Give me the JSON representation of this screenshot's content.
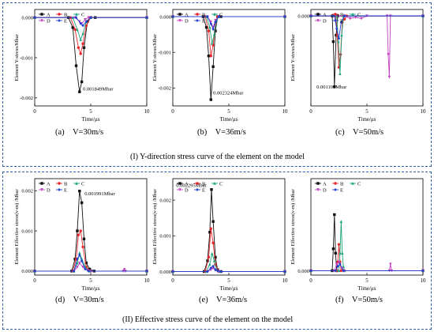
{
  "groups": [
    {
      "caption": "(I)  Y-direction stress curve of the element on the model"
    },
    {
      "caption": "(II)   Effective stress curve of the element on the model"
    }
  ],
  "colors": {
    "A": "#111111",
    "B": "#e8262b",
    "C": "#1aa37a",
    "D": "#c040c0",
    "E": "#1f3fd0",
    "box": "#2f5fa8"
  },
  "chart_data": [
    {
      "id": "a",
      "type": "line",
      "caption_label": "(a)",
      "caption_value": "V=30m/s",
      "ylabel": "Element  Y-stress/Mbar",
      "xlabel": "Time/μs",
      "xlim": [
        0,
        10
      ],
      "ylim": [
        -0.0022,
        0.0002
      ],
      "x_ticks": [
        "0",
        "5",
        "10"
      ],
      "x_tick_values": [
        0,
        5,
        10
      ],
      "y_ticks": [
        "0.000",
        "-0.001",
        "-0.002"
      ],
      "y_tick_values": [
        0,
        -0.001,
        -0.002
      ],
      "annotation": {
        "text": "0.001849Mbar",
        "x": 4.3,
        "y": -0.00182
      },
      "legend": [
        "A",
        "B",
        "C",
        "D",
        "E"
      ],
      "series": [
        {
          "name": "A",
          "x": [
            0,
            3.0,
            3.4,
            3.7,
            4.0,
            4.2,
            4.4,
            4.7,
            5.0,
            5.4,
            10
          ],
          "y": [
            0,
            0,
            -0.00025,
            -0.0012,
            -0.001849,
            -0.0016,
            -0.00075,
            -0.0001,
            0,
            0,
            0
          ]
        },
        {
          "name": "B",
          "x": [
            0,
            3.2,
            3.6,
            3.9,
            4.1,
            4.3,
            4.6,
            5.0,
            10
          ],
          "y": [
            0,
            0,
            -0.0003,
            -0.00075,
            -0.0009,
            -0.00065,
            -0.0002,
            0,
            0
          ]
        },
        {
          "name": "C",
          "x": [
            0,
            3.4,
            3.8,
            4.1,
            4.3,
            4.6,
            5.0,
            10
          ],
          "y": [
            0,
            0,
            -0.0003,
            -0.00055,
            -0.0004,
            -0.0001,
            0,
            0
          ]
        },
        {
          "name": "D",
          "x": [
            0,
            3.6,
            4.0,
            4.2,
            4.5,
            4.8,
            10
          ],
          "y": [
            0,
            0,
            -0.0001,
            -0.00015,
            -5e-05,
            0,
            0
          ]
        },
        {
          "name": "E",
          "x": [
            0,
            3.7,
            4.1,
            4.3,
            4.6,
            5.0,
            10
          ],
          "y": [
            0,
            0,
            -0.00015,
            -0.0002,
            -0.0001,
            0,
            0
          ]
        }
      ]
    },
    {
      "id": "b",
      "type": "line",
      "caption_label": "(b)",
      "caption_value": "V=36m/s",
      "ylabel": "Element  Y-stress/Mbar",
      "xlabel": "Time/μs",
      "xlim": [
        0,
        10
      ],
      "ylim": [
        -0.0025,
        0.0002
      ],
      "x_ticks": [
        "0",
        "5",
        "10"
      ],
      "x_tick_values": [
        0,
        5,
        10
      ],
      "y_ticks": [
        "0.000",
        "-0.001",
        "-0.002"
      ],
      "y_tick_values": [
        0,
        -0.001,
        -0.002
      ],
      "annotation": {
        "text": "0.002324Mbar",
        "x": 3.6,
        "y": -0.00218
      },
      "legend": [
        "A",
        "B",
        "C",
        "D",
        "E"
      ],
      "series": [
        {
          "name": "A",
          "x": [
            0,
            2.7,
            3.0,
            3.2,
            3.4,
            3.6,
            3.8,
            4.0,
            4.3,
            10
          ],
          "y": [
            0,
            0,
            -0.0003,
            -0.0011,
            -0.002324,
            -0.0014,
            -0.0004,
            0,
            0,
            0
          ]
        },
        {
          "name": "B",
          "x": [
            0,
            2.9,
            3.2,
            3.4,
            3.6,
            3.8,
            4.0,
            10
          ],
          "y": [
            0,
            0,
            -0.0004,
            -0.0011,
            -0.0008,
            -0.0002,
            0,
            0
          ]
        },
        {
          "name": "C",
          "x": [
            0,
            3.0,
            3.3,
            3.5,
            3.7,
            3.9,
            4.1,
            10
          ],
          "y": [
            0,
            0,
            -0.0003,
            -0.00075,
            -0.0005,
            -0.0001,
            0,
            0
          ]
        },
        {
          "name": "D",
          "x": [
            0,
            3.1,
            3.4,
            3.6,
            3.8,
            4.1,
            10
          ],
          "y": [
            0,
            0,
            -0.00015,
            -0.0003,
            -0.0001,
            0,
            0
          ]
        },
        {
          "name": "E",
          "x": [
            0,
            3.1,
            3.4,
            3.6,
            3.8,
            4.1,
            10
          ],
          "y": [
            0,
            0,
            -0.0002,
            -0.00035,
            -0.00015,
            0,
            0
          ]
        }
      ]
    },
    {
      "id": "c",
      "type": "line",
      "caption_label": "(c)",
      "caption_value": "V=50m/s",
      "ylabel": "Element  Y-stress/Mbar",
      "xlabel": "Time/μs",
      "xlim": [
        0,
        10
      ],
      "ylim": [
        -0.0014,
        0.0001
      ],
      "x_ticks": [
        "0",
        "5",
        "10"
      ],
      "x_tick_values": [
        0,
        5,
        10
      ],
      "y_ticks": [
        "0.000"
      ],
      "y_tick_values": [
        0
      ],
      "annotation": {
        "text": "0.001101Mbar",
        "x": 0.5,
        "y": -0.00113
      },
      "legend": [
        "A",
        "B",
        "C",
        "D",
        "E"
      ],
      "series": [
        {
          "name": "A",
          "x": [
            0,
            1.9,
            2.0,
            2.1,
            2.25,
            2.4,
            10
          ],
          "y": [
            0,
            0,
            -0.0004,
            -0.001101,
            -0.0003,
            0,
            0
          ]
        },
        {
          "name": "B",
          "x": [
            0,
            2.2,
            2.35,
            2.5,
            2.65,
            2.8,
            3.0,
            3.2,
            10
          ],
          "y": [
            0,
            0,
            -0.0003,
            -0.0008,
            -0.0006,
            -0.0001,
            -5e-05,
            0,
            0
          ]
        },
        {
          "name": "C",
          "x": [
            0,
            2.3,
            2.45,
            2.6,
            2.75,
            2.9,
            10
          ],
          "y": [
            0,
            0,
            -0.0004,
            -0.0009,
            -0.0003,
            0,
            0
          ]
        },
        {
          "name": "D",
          "x": [
            0,
            3.0,
            3.5,
            4.0,
            4.5,
            5.0,
            6.8,
            6.9,
            7.0,
            7.1,
            10
          ],
          "y": [
            0,
            0,
            -4e-05,
            -2e-05,
            -4e-05,
            0,
            0,
            -0.0006,
            -0.00095,
            0,
            0
          ]
        },
        {
          "name": "E",
          "x": [
            0,
            2.1,
            2.3,
            2.5,
            2.7,
            3.0,
            10
          ],
          "y": [
            0,
            0,
            -0.0002,
            -0.00035,
            -0.0001,
            0,
            0
          ]
        }
      ]
    },
    {
      "id": "d",
      "type": "line",
      "caption_label": "(d)",
      "caption_value": "V=30m/s",
      "ylabel": "Element  Effective stress(v-m) /Mbar",
      "xlabel": "Time/μs",
      "xlim": [
        0,
        10
      ],
      "ylim": [
        -0.0001,
        0.0023
      ],
      "x_ticks": [
        "0",
        "5",
        "10"
      ],
      "x_tick_values": [
        0,
        5,
        10
      ],
      "y_ticks": [
        "0.000",
        "0.001",
        "0.002"
      ],
      "y_tick_values": [
        0,
        0.001,
        0.002
      ],
      "annotation": {
        "text": "0.001991Mbar",
        "x": 4.45,
        "y": 0.00189
      },
      "legend": [
        "A",
        "B",
        "C",
        "D",
        "E"
      ],
      "series": [
        {
          "name": "A",
          "x": [
            0,
            3.3,
            3.6,
            3.8,
            4.0,
            4.2,
            4.4,
            4.6,
            4.9,
            5.3,
            10
          ],
          "y": [
            0,
            0,
            0.0003,
            0.001,
            0.001991,
            0.0017,
            0.0008,
            0.0002,
            5e-05,
            0,
            0
          ]
        },
        {
          "name": "B",
          "x": [
            0,
            3.4,
            3.7,
            3.9,
            4.1,
            4.3,
            4.6,
            5.0,
            10
          ],
          "y": [
            0,
            0,
            0.0003,
            0.0009,
            0.001,
            0.0006,
            0.0001,
            0,
            0
          ]
        },
        {
          "name": "C",
          "x": [
            0,
            3.5,
            3.8,
            4.0,
            4.2,
            4.5,
            4.9,
            10
          ],
          "y": [
            0,
            0,
            0.0002,
            0.00045,
            0.0003,
            0.0001,
            0,
            0
          ]
        },
        {
          "name": "D",
          "x": [
            0,
            3.5,
            3.8,
            4.0,
            4.3,
            4.7,
            5.0,
            7.9,
            8.0,
            8.1,
            10
          ],
          "y": [
            0,
            0,
            0.0001,
            0.0002,
            0.0001,
            2e-05,
            0,
            0,
            4e-05,
            0,
            0
          ]
        },
        {
          "name": "E",
          "x": [
            0,
            3.5,
            3.8,
            4.0,
            4.2,
            4.5,
            4.8,
            10
          ],
          "y": [
            0,
            0,
            0.0003,
            0.0004,
            0.00025,
            5e-05,
            0,
            0
          ]
        }
      ]
    },
    {
      "id": "e",
      "type": "line",
      "caption_label": "(e)",
      "caption_value": "V=36m/s",
      "ylabel": "Element  Effective stress(v-m) /Mbar",
      "xlabel": "Time/μs",
      "xlim": [
        0,
        10
      ],
      "ylim": [
        -0.0001,
        0.0026
      ],
      "x_ticks": [
        "0",
        "5",
        "10"
      ],
      "x_tick_values": [
        0,
        5,
        10
      ],
      "y_ticks": [
        "0.000",
        "0.001",
        "0.002"
      ],
      "y_tick_values": [
        0,
        0.001,
        0.002
      ],
      "annotation": {
        "text": "0.002295Mbar",
        "x": 0.3,
        "y": 0.00237
      },
      "legend": [
        "A",
        "B",
        "C",
        "D",
        "E"
      ],
      "series": [
        {
          "name": "A",
          "x": [
            0,
            2.8,
            3.1,
            3.3,
            3.45,
            3.6,
            3.8,
            4.0,
            4.3,
            10
          ],
          "y": [
            0,
            0,
            0.0003,
            0.0011,
            0.002295,
            0.0014,
            0.0004,
            5e-05,
            0,
            0
          ]
        },
        {
          "name": "B",
          "x": [
            0,
            2.9,
            3.2,
            3.4,
            3.6,
            3.8,
            4.1,
            10
          ],
          "y": [
            0,
            0,
            0.0004,
            0.0012,
            0.0008,
            0.0002,
            0,
            0
          ]
        },
        {
          "name": "C",
          "x": [
            0,
            3.0,
            3.3,
            3.5,
            3.7,
            3.9,
            4.2,
            10
          ],
          "y": [
            0,
            0,
            0.0002,
            0.0005,
            0.0003,
            5e-05,
            0,
            0
          ]
        },
        {
          "name": "D",
          "x": [
            0,
            3.1,
            3.4,
            3.6,
            3.8,
            4.1,
            10
          ],
          "y": [
            0,
            0,
            5e-05,
            0.0001,
            4e-05,
            0,
            0
          ]
        },
        {
          "name": "E",
          "x": [
            0,
            3.1,
            3.4,
            3.6,
            3.8,
            4.0,
            4.3,
            10
          ],
          "y": [
            0,
            0,
            0.0001,
            0.00015,
            5e-05,
            2e-05,
            0,
            0
          ]
        }
      ]
    },
    {
      "id": "f",
      "type": "line",
      "caption_label": "(f)",
      "caption_value": "V=50m/s",
      "ylabel": "Element  Effective stress(v-m) /Mbar",
      "xlabel": "Time/μs",
      "xlim": [
        0,
        10
      ],
      "ylim": [
        -0.0001,
        0.0021
      ],
      "x_ticks": [
        "0",
        "5",
        "10"
      ],
      "x_tick_values": [
        0,
        5,
        10
      ],
      "y_ticks": [
        "0.000"
      ],
      "y_tick_values": [
        0
      ],
      "annotation": null,
      "legend": [
        "A",
        "B",
        "C",
        "D",
        "E"
      ],
      "series": [
        {
          "name": "A",
          "x": [
            0,
            1.9,
            2.0,
            2.1,
            2.2,
            2.3,
            10
          ],
          "y": [
            0,
            0,
            0.0005,
            0.00128,
            0.0004,
            0,
            0
          ]
        },
        {
          "name": "B",
          "x": [
            0,
            2.3,
            2.4,
            2.5,
            2.6,
            2.7,
            10
          ],
          "y": [
            0,
            0,
            0.0002,
            0.0006,
            0.0002,
            0,
            0
          ]
        },
        {
          "name": "C",
          "x": [
            0,
            2.5,
            2.6,
            2.7,
            2.8,
            2.9,
            3.0,
            10
          ],
          "y": [
            0,
            0,
            0.0004,
            0.00112,
            0.0004,
            0.0001,
            0,
            0
          ]
        },
        {
          "name": "D",
          "x": [
            0,
            2.1,
            2.3,
            2.5,
            2.8,
            3.0,
            7.0,
            7.1,
            7.2,
            10
          ],
          "y": [
            0,
            0,
            0.00015,
            0.0002,
            5e-05,
            0,
            0,
            0.00015,
            0,
            0
          ]
        },
        {
          "name": "E",
          "x": [
            0,
            2.2,
            2.4,
            2.6,
            2.9,
            10
          ],
          "y": [
            0,
            0,
            0.0001,
            0.00015,
            0,
            0
          ]
        }
      ]
    }
  ]
}
